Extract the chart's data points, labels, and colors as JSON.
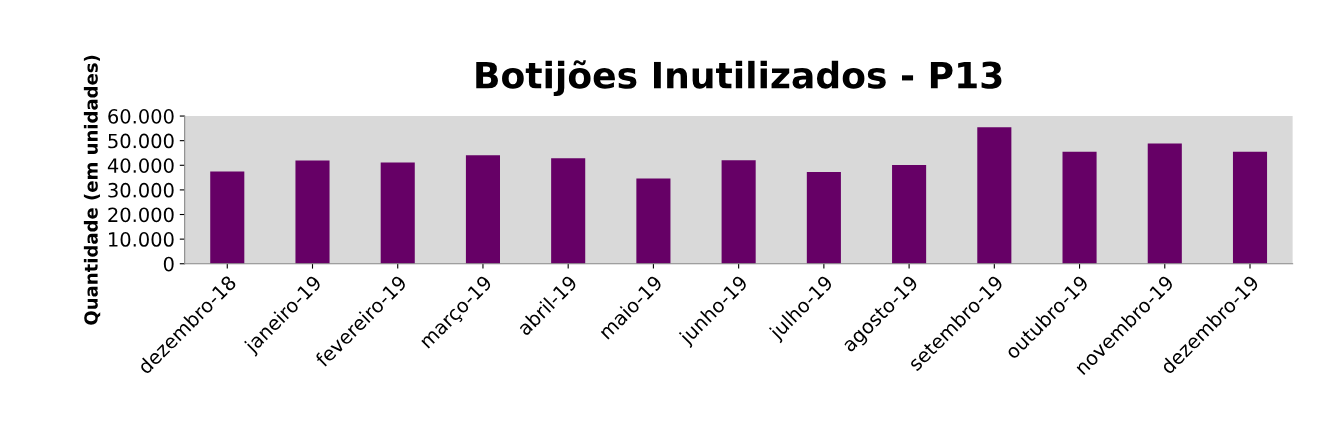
{
  "chart_data": {
    "type": "bar",
    "title": "Botijões Inutilizados - P13",
    "ylabel": "Quantidade (em unidades)",
    "categories": [
      "dezembro-18",
      "janeiro-19",
      "fevereiro-19",
      "março-19",
      "abril-19",
      "maio-19",
      "junho-19",
      "julho-19",
      "agosto-19",
      "setembro-19",
      "outubro-19",
      "novembro-19",
      "dezembro-19"
    ],
    "values": [
      37500,
      41900,
      41100,
      44100,
      42900,
      34600,
      42000,
      37300,
      40100,
      55400,
      45500,
      48800,
      45500
    ],
    "color": "#660066",
    "ylim": [
      0,
      60000
    ],
    "yticks": [
      {
        "value": 0,
        "label": "0"
      },
      {
        "value": 10000,
        "label": "10.000"
      },
      {
        "value": 20000,
        "label": "20.000"
      },
      {
        "value": 30000,
        "label": "30.000"
      },
      {
        "value": 40000,
        "label": "40.000"
      },
      {
        "value": 50000,
        "label": "50.000"
      },
      {
        "value": 60000,
        "label": "60.000"
      }
    ],
    "grid": false,
    "legend": false
  }
}
